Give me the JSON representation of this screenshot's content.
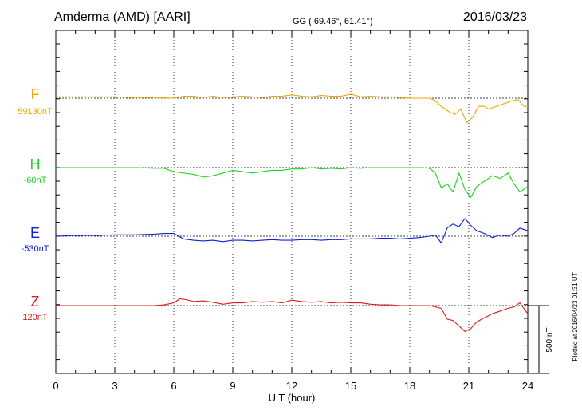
{
  "header": {
    "station": "Amderma (AMD)  [AARI]",
    "coords": "GG ( 69.46°,  61.41°)",
    "date": "2016/03/23"
  },
  "footer_note": "Plotted at 2016/04/23 01:31 UT",
  "scale_label": "500 nT",
  "chart_data": {
    "type": "line",
    "title": "Amderma (AMD)  [AARI]",
    "xlabel": "U T (hour)",
    "ylabel": "",
    "xlim": [
      0,
      24
    ],
    "x_ticks": [
      0,
      3,
      6,
      9,
      12,
      15,
      18,
      21,
      24
    ],
    "grid": true,
    "y_unit": "nT",
    "series": [
      {
        "name": "F",
        "baseline_label": "59130nT",
        "color": "#f0a800",
        "x": [
          0,
          1,
          2,
          3,
          4,
          5,
          6,
          6.5,
          7,
          7.5,
          8,
          8.5,
          9,
          9.5,
          10,
          10.5,
          11,
          11.5,
          12,
          12.5,
          13,
          13.5,
          14,
          14.5,
          15,
          15.5,
          16,
          16.5,
          17,
          17.5,
          18,
          18.5,
          19,
          19.3,
          19.6,
          20,
          20.3,
          20.6,
          20.9,
          21.2,
          21.5,
          21.8,
          22,
          22.4,
          22.8,
          23.2,
          23.5,
          23.8,
          24
        ],
        "values": [
          10,
          10,
          10,
          10,
          5,
          5,
          0,
          15,
          15,
          5,
          15,
          5,
          10,
          15,
          10,
          5,
          15,
          15,
          25,
          15,
          10,
          20,
          15,
          15,
          30,
          10,
          15,
          10,
          10,
          5,
          0,
          0,
          0,
          -20,
          -60,
          -100,
          -120,
          -80,
          -180,
          -140,
          -60,
          -60,
          -80,
          -60,
          -40,
          -20,
          -10,
          -60,
          -60
        ]
      },
      {
        "name": "H",
        "baseline_label": "-60nT",
        "color": "#1ad61a",
        "x": [
          0,
          1,
          2,
          3,
          4,
          5,
          5.5,
          6,
          6.5,
          7,
          7.5,
          8,
          8.5,
          9,
          9.5,
          10,
          10.5,
          11,
          11.5,
          12,
          12.5,
          13,
          13.5,
          14,
          14.5,
          15,
          15.5,
          16,
          16.5,
          17,
          17.5,
          18,
          18.5,
          19,
          19.3,
          19.6,
          19.9,
          20.2,
          20.5,
          20.8,
          21.1,
          21.4,
          21.8,
          22.2,
          22.6,
          23,
          23.3,
          23.6,
          24
        ],
        "values": [
          0,
          0,
          0,
          0,
          0,
          -5,
          -5,
          -30,
          -40,
          -50,
          -70,
          -60,
          -40,
          -20,
          -30,
          -40,
          -30,
          -20,
          -20,
          -10,
          -10,
          0,
          -10,
          -5,
          -10,
          0,
          -5,
          0,
          0,
          0,
          0,
          0,
          0,
          -5,
          -40,
          -150,
          -120,
          -180,
          -40,
          -160,
          -220,
          -140,
          -100,
          -60,
          -80,
          -40,
          -120,
          -180,
          -140
        ]
      },
      {
        "name": "E",
        "baseline_label": "-530nT",
        "color": "#1020d8",
        "x": [
          0,
          1,
          2,
          3,
          4,
          5,
          5.5,
          6,
          6.5,
          7,
          7.5,
          8,
          8.5,
          9,
          9.5,
          10,
          10.5,
          11,
          11.5,
          12,
          12.5,
          13,
          13.5,
          14,
          14.5,
          15,
          15.5,
          16,
          16.5,
          17,
          17.5,
          18,
          18.5,
          19,
          19.3,
          19.6,
          19.9,
          20.2,
          20.5,
          20.8,
          21.1,
          21.4,
          21.8,
          22.2,
          22.6,
          23,
          23.3,
          23.6,
          24
        ],
        "values": [
          0,
          5,
          5,
          10,
          10,
          15,
          20,
          20,
          -20,
          -30,
          -35,
          -30,
          -40,
          -30,
          -30,
          -35,
          -30,
          -25,
          -30,
          -30,
          -25,
          -25,
          -30,
          -25,
          -25,
          -20,
          -20,
          -20,
          -15,
          -15,
          -20,
          -15,
          -10,
          0,
          10,
          -50,
          60,
          90,
          70,
          130,
          80,
          40,
          20,
          -10,
          10,
          0,
          20,
          60,
          40
        ]
      },
      {
        "name": "Z",
        "baseline_label": "120nT",
        "color": "#e01a1a",
        "x": [
          0,
          1,
          2,
          3,
          4,
          5,
          5.5,
          6,
          6.3,
          6.6,
          7,
          7.5,
          8,
          8.5,
          9,
          9.5,
          10,
          10.5,
          11,
          11.5,
          12,
          12.5,
          13,
          13.5,
          14,
          14.5,
          15,
          15.5,
          16,
          16.5,
          17,
          17.5,
          18,
          18.5,
          19,
          19.3,
          19.6,
          19.9,
          20.2,
          20.5,
          20.8,
          21.1,
          21.4,
          21.8,
          22.2,
          22.6,
          23,
          23.3,
          23.6,
          24
        ],
        "values": [
          0,
          0,
          0,
          0,
          0,
          0,
          5,
          20,
          50,
          45,
          30,
          35,
          25,
          10,
          20,
          20,
          30,
          25,
          30,
          20,
          40,
          30,
          25,
          30,
          20,
          25,
          20,
          20,
          10,
          5,
          5,
          0,
          0,
          0,
          0,
          -10,
          -20,
          -100,
          -110,
          -150,
          -190,
          -170,
          -120,
          -90,
          -60,
          -40,
          -20,
          -10,
          20,
          -60
        ]
      }
    ],
    "scale_bar_nT": 500
  }
}
